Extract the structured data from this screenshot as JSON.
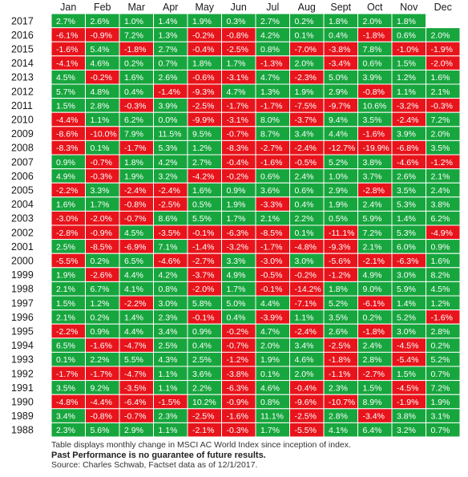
{
  "chart_data": {
    "type": "table",
    "columns": [
      "Jan",
      "Feb",
      "Mar",
      "Apr",
      "May",
      "Jun",
      "Jul",
      "Aug",
      "Sept",
      "Oct",
      "Nov",
      "Dec"
    ],
    "rows": [
      {
        "year": "2017",
        "values": [
          "2.7%",
          "2.6%",
          "1.0%",
          "1.4%",
          "1.9%",
          "0.3%",
          "2.7%",
          "0.2%",
          "1.8%",
          "2.0%",
          "1.8%",
          ""
        ]
      },
      {
        "year": "2016",
        "values": [
          "-6.1%",
          "-0.9%",
          "7.2%",
          "1.3%",
          "-0.2%",
          "-0.8%",
          "4.2%",
          "0.1%",
          "0.4%",
          "-1.8%",
          "0.6%",
          "2.0%"
        ]
      },
      {
        "year": "2015",
        "values": [
          "-1.6%",
          "5.4%",
          "-1.8%",
          "2.7%",
          "-0.4%",
          "-2.5%",
          "0.8%",
          "-7.0%",
          "-3.8%",
          "7.8%",
          "-1.0%",
          "-1.9%"
        ]
      },
      {
        "year": "2014",
        "values": [
          "-4.1%",
          "4.6%",
          "0.2%",
          "0.7%",
          "1.8%",
          "1.7%",
          "-1.3%",
          "2.0%",
          "-3.4%",
          "0.6%",
          "1.5%",
          "-2.0%"
        ]
      },
      {
        "year": "2013",
        "values": [
          "4.5%",
          "-0.2%",
          "1.6%",
          "2.6%",
          "-0.6%",
          "-3.1%",
          "4.7%",
          "-2.3%",
          "5.0%",
          "3.9%",
          "1.2%",
          "1.6%"
        ]
      },
      {
        "year": "2012",
        "values": [
          "5.7%",
          "4.8%",
          "0.4%",
          "-1.4%",
          "-9.3%",
          "4.7%",
          "1.3%",
          "1.9%",
          "2.9%",
          "-0.8%",
          "1.1%",
          "2.1%"
        ]
      },
      {
        "year": "2011",
        "values": [
          "1.5%",
          "2.8%",
          "-0.3%",
          "3.9%",
          "-2.5%",
          "-1.7%",
          "-1.7%",
          "-7.5%",
          "-9.7%",
          "10.6%",
          "-3.2%",
          "-0.3%"
        ]
      },
      {
        "year": "2010",
        "values": [
          "-4.4%",
          "1.1%",
          "6.2%",
          "0.0%",
          "-9.9%",
          "-3.1%",
          "8.0%",
          "-3.7%",
          "9.4%",
          "3.5%",
          "-2.4%",
          "7.2%"
        ]
      },
      {
        "year": "2009",
        "values": [
          "-8.6%",
          "-10.0%",
          "7.9%",
          "11.5%",
          "9.5%",
          "-0.7%",
          "8.7%",
          "3.4%",
          "4.4%",
          "-1.6%",
          "3.9%",
          "2.0%"
        ]
      },
      {
        "year": "2008",
        "values": [
          "-8.3%",
          "0.1%",
          "-1.7%",
          "5.3%",
          "1.2%",
          "-8.3%",
          "-2.7%",
          "-2.4%",
          "-12.7%",
          "-19.9%",
          "-6.8%",
          "3.5%"
        ]
      },
      {
        "year": "2007",
        "values": [
          "0.9%",
          "-0.7%",
          "1.8%",
          "4.2%",
          "2.7%",
          "-0.4%",
          "-1.6%",
          "-0.5%",
          "5.2%",
          "3.8%",
          "-4.6%",
          "-1.2%"
        ]
      },
      {
        "year": "2006",
        "values": [
          "4.9%",
          "-0.3%",
          "1.9%",
          "3.2%",
          "-4.2%",
          "-0.2%",
          "0.6%",
          "2.4%",
          "1.0%",
          "3.7%",
          "2.6%",
          "2.1%"
        ]
      },
      {
        "year": "2005",
        "values": [
          "-2.2%",
          "3.3%",
          "-2.4%",
          "-2.4%",
          "1.6%",
          "0.9%",
          "3.6%",
          "0.6%",
          "2.9%",
          "-2.8%",
          "3.5%",
          "2.4%"
        ]
      },
      {
        "year": "2004",
        "values": [
          "1.6%",
          "1.7%",
          "-0.8%",
          "-2.5%",
          "0.5%",
          "1.9%",
          "-3.3%",
          "0.4%",
          "1.9%",
          "2.4%",
          "5.3%",
          "3.8%"
        ]
      },
      {
        "year": "2003",
        "values": [
          "-3.0%",
          "-2.0%",
          "-0.7%",
          "8.6%",
          "5.5%",
          "1.7%",
          "2.1%",
          "2.2%",
          "0.5%",
          "5.9%",
          "1.4%",
          "6.2%"
        ]
      },
      {
        "year": "2002",
        "values": [
          "-2.8%",
          "-0.9%",
          "4.5%",
          "-3.5%",
          "-0.1%",
          "-6.3%",
          "-8.5%",
          "0.1%",
          "-11.1%",
          "7.2%",
          "5.3%",
          "-4.9%"
        ]
      },
      {
        "year": "2001",
        "values": [
          "2.5%",
          "-8.5%",
          "-6.9%",
          "7.1%",
          "-1.4%",
          "-3.2%",
          "-1.7%",
          "-4.8%",
          "-9.3%",
          "2.1%",
          "6.0%",
          "0.9%"
        ]
      },
      {
        "year": "2000",
        "values": [
          "-5.5%",
          "0.2%",
          "6.5%",
          "-4.6%",
          "-2.7%",
          "3.3%",
          "-3.0%",
          "3.0%",
          "-5.6%",
          "-2.1%",
          "-6.3%",
          "1.6%"
        ]
      },
      {
        "year": "1999",
        "values": [
          "1.9%",
          "-2.6%",
          "4.4%",
          "4.2%",
          "-3.7%",
          "4.9%",
          "-0.5%",
          "-0.2%",
          "-1.2%",
          "4.9%",
          "3.0%",
          "8.2%"
        ]
      },
      {
        "year": "1998",
        "values": [
          "2.1%",
          "6.7%",
          "4.1%",
          "0.8%",
          "-2.0%",
          "1.7%",
          "-0.1%",
          "-14.2%",
          "1.8%",
          "9.0%",
          "5.9%",
          "4.5%"
        ]
      },
      {
        "year": "1997",
        "values": [
          "1.5%",
          "1.2%",
          "-2.2%",
          "3.0%",
          "5.8%",
          "5.0%",
          "4.4%",
          "-7.1%",
          "5.2%",
          "-6.1%",
          "1.4%",
          "1.2%"
        ]
      },
      {
        "year": "1996",
        "values": [
          "2.1%",
          "0.2%",
          "1.4%",
          "2.3%",
          "-0.1%",
          "0.4%",
          "-3.9%",
          "1.1%",
          "3.5%",
          "0.2%",
          "5.2%",
          "-1.6%"
        ]
      },
      {
        "year": "1995",
        "values": [
          "-2.2%",
          "0.9%",
          "4.4%",
          "3.4%",
          "0.9%",
          "-0.2%",
          "4.7%",
          "-2.4%",
          "2.6%",
          "-1.8%",
          "3.0%",
          "2.8%"
        ]
      },
      {
        "year": "1994",
        "values": [
          "6.5%",
          "-1.6%",
          "-4.7%",
          "2.5%",
          "0.4%",
          "-0.7%",
          "2.0%",
          "3.4%",
          "-2.5%",
          "2.4%",
          "-4.5%",
          "0.2%"
        ]
      },
      {
        "year": "1993",
        "values": [
          "0.1%",
          "2.2%",
          "5.5%",
          "4.3%",
          "2.5%",
          "-1.2%",
          "1.9%",
          "4.6%",
          "-1.8%",
          "2.8%",
          "-5.4%",
          "5.2%"
        ]
      },
      {
        "year": "1992",
        "values": [
          "-1.7%",
          "-1.7%",
          "-4.7%",
          "1.1%",
          "3.6%",
          "-3.8%",
          "0.1%",
          "2.0%",
          "-1.1%",
          "-2.7%",
          "1.5%",
          "0.7%"
        ]
      },
      {
        "year": "1991",
        "values": [
          "3.5%",
          "9.2%",
          "-3.5%",
          "1.1%",
          "2.2%",
          "-6.3%",
          "4.6%",
          "-0.4%",
          "2.3%",
          "1.5%",
          "-4.5%",
          "7.2%"
        ]
      },
      {
        "year": "1990",
        "values": [
          "-4.8%",
          "-4.4%",
          "-6.4%",
          "-1.5%",
          "10.2%",
          "-0.9%",
          "0.8%",
          "-9.6%",
          "-10.7%",
          "8.9%",
          "-1.9%",
          "1.9%"
        ]
      },
      {
        "year": "1989",
        "values": [
          "3.4%",
          "-0.8%",
          "-0.7%",
          "2.3%",
          "-2.5%",
          "-1.6%",
          "11.1%",
          "-2.5%",
          "2.8%",
          "-3.4%",
          "3.8%",
          "3.1%"
        ]
      },
      {
        "year": "1988",
        "values": [
          "2.3%",
          "5.6%",
          "2.9%",
          "1.1%",
          "-2.1%",
          "-0.3%",
          "1.7%",
          "-5.5%",
          "4.1%",
          "6.4%",
          "3.2%",
          "0.7%"
        ]
      }
    ],
    "colors": {
      "positive": "#17a63e",
      "negative": "#e8141b",
      "cell_text": "#ffffff",
      "header_text": "#1a1a1a",
      "year_text": "#1a1a1a",
      "grid": "#ffffff"
    }
  },
  "footer": {
    "note": "Table displays monthly change in MSCI AC World Index since inception of index.",
    "disclaimer": "Past Performance is no guarantee of future results.",
    "source": "Source: Charles Schwab, Factset data as of 12/1/2017."
  }
}
